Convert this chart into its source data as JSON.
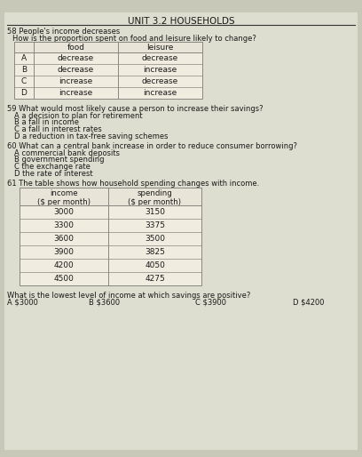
{
  "title": "UNIT 3.2 HOUSEHOLDS",
  "bg_color": "#c8c8b8",
  "page_bg": "#e0e0d0",
  "q58_header": "58 People's income decreases",
  "q58_sub": "How is the proportion spent on food and leisure likely to change?",
  "q58_cols": [
    "food",
    "leisure"
  ],
  "q58_rows": [
    [
      "A",
      "decrease",
      "decrease"
    ],
    [
      "B",
      "decrease",
      "increase"
    ],
    [
      "C",
      "increase",
      "decrease"
    ],
    [
      "D",
      "increase",
      "increase"
    ]
  ],
  "q59_text": "59 What would most likely cause a person to increase their savings?",
  "q59_options": [
    "A a decision to plan for retirement",
    "B a fall in income",
    "C a fall in interest rates",
    "D a reduction in tax-free saving schemes"
  ],
  "q60_text": "60 What can a central bank increase in order to reduce consumer borrowing?",
  "q60_options": [
    "A commercial bank deposits",
    "B government spending",
    "C the exchange rate",
    "D the rate of interest"
  ],
  "q61_text": "61 The table shows how household spending changes with income.",
  "q61_col1": "income\n($ per month)",
  "q61_col2": "spending\n($ per month)",
  "q61_rows": [
    [
      "3000",
      "3150"
    ],
    [
      "3300",
      "3375"
    ],
    [
      "3600",
      "3500"
    ],
    [
      "3900",
      "3825"
    ],
    [
      "4200",
      "4050"
    ],
    [
      "4500",
      "4275"
    ]
  ],
  "q61_bottom": "What is the lowest level of income at which savings are positive?",
  "q61_answers_text": "What is the lowest level of income at which savings are positive?",
  "q61_ans_a": "A $3000",
  "q61_ans_b": "B $3600",
  "q61_ans_c": "C $3900",
  "q61_ans_d": "D $4200",
  "text_color": "#1a1a1a",
  "table_bg": "#f0ede0",
  "table_border": "#888880",
  "title_fontsize": 7.5,
  "body_fontsize": 6.0,
  "small_fontsize": 5.8
}
